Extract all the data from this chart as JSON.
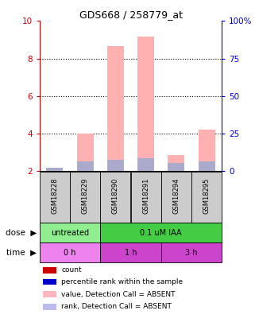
{
  "title": "GDS668 / 258779_at",
  "samples": [
    "GSM18228",
    "GSM18229",
    "GSM18290",
    "GSM18291",
    "GSM18294",
    "GSM18295"
  ],
  "pink_bar_values": [
    2.08,
    4.02,
    8.65,
    9.18,
    2.85,
    4.22
  ],
  "blue_bar_values": [
    2.18,
    2.52,
    2.62,
    2.68,
    2.42,
    2.52
  ],
  "ylim_left": [
    2,
    10
  ],
  "ylim_right": [
    0,
    100
  ],
  "yticks_left": [
    2,
    4,
    6,
    8,
    10
  ],
  "yticks_right": [
    0,
    25,
    50,
    75,
    100
  ],
  "ytick_labels_right": [
    "0",
    "25",
    "50",
    "75",
    "100%"
  ],
  "dose_groups": [
    {
      "label": "untreated",
      "span": [
        0,
        2
      ],
      "color": "#90EE90"
    },
    {
      "label": "0.1 uM IAA",
      "span": [
        2,
        6
      ],
      "color": "#44CC44"
    }
  ],
  "time_groups": [
    {
      "label": "0 h",
      "span": [
        0,
        2
      ],
      "color": "#EE82EE"
    },
    {
      "label": "1 h",
      "span": [
        2,
        4
      ],
      "color": "#CC44CC"
    },
    {
      "label": "3 h",
      "span": [
        4,
        6
      ],
      "color": "#CC44CC"
    }
  ],
  "dose_label": "dose",
  "time_label": "time",
  "legend_items": [
    {
      "color": "#CC0000",
      "label": "count"
    },
    {
      "color": "#0000CC",
      "label": "percentile rank within the sample"
    },
    {
      "color": "#FFB6C1",
      "label": "value, Detection Call = ABSENT"
    },
    {
      "color": "#BBBBEE",
      "label": "rank, Detection Call = ABSENT"
    }
  ],
  "pink_color": "#FFB0B0",
  "blue_color": "#AAAACC",
  "grid_color": "#888888",
  "sample_box_color": "#CCCCCC",
  "left_axis_color": "#CC0000",
  "right_axis_color": "#0000CC"
}
